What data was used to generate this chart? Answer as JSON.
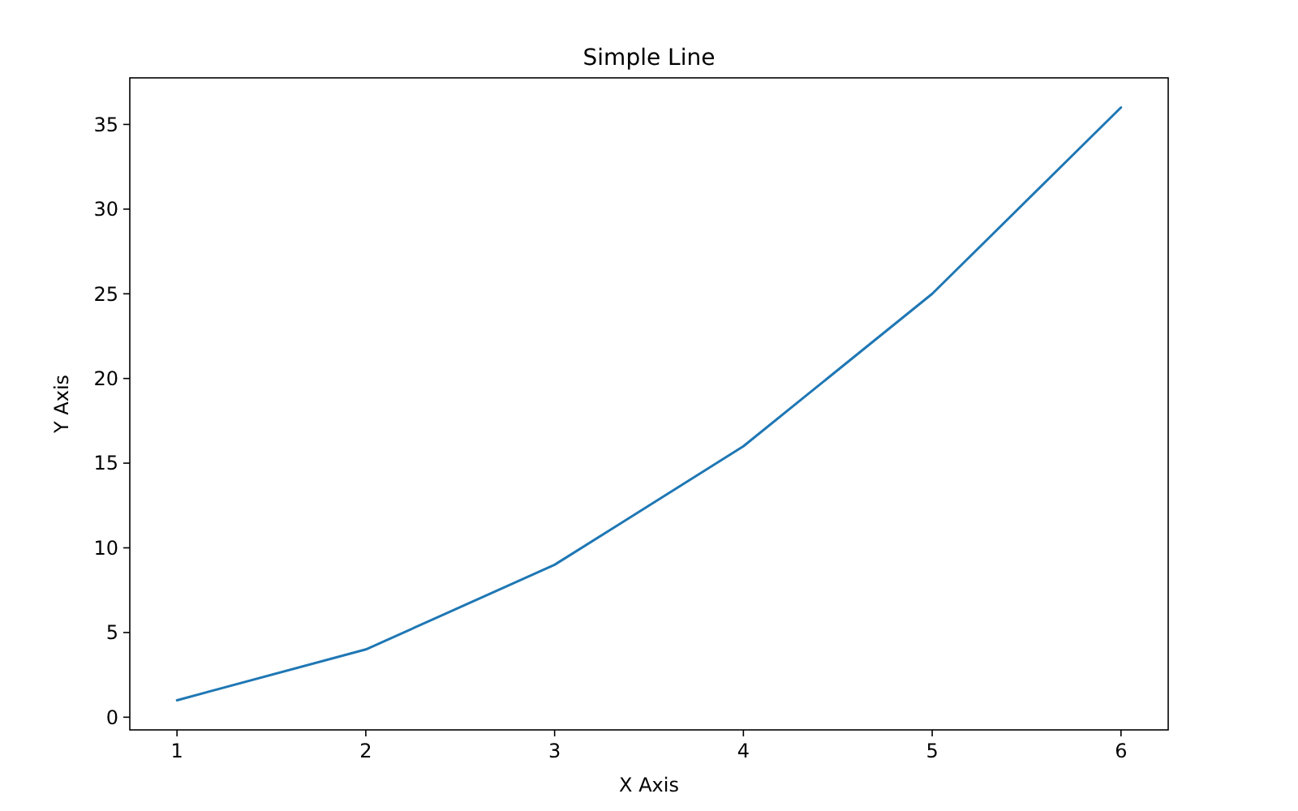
{
  "chart_data": {
    "type": "line",
    "title": "Simple Line",
    "xlabel": "X Axis",
    "ylabel": "Y Axis",
    "x": [
      1,
      2,
      3,
      4,
      5,
      6
    ],
    "series": [
      {
        "color": "#1f77b4",
        "values": [
          1,
          4,
          9,
          16,
          25,
          36
        ]
      }
    ],
    "xlim": [
      0.75,
      6.25
    ],
    "xticks": [
      1,
      2,
      3,
      4,
      5,
      6
    ],
    "ylim": [
      -0.75,
      37.75
    ],
    "yticks": [
      0,
      5,
      10,
      15,
      20,
      25,
      30,
      35
    ],
    "grid": false,
    "marker": "none",
    "line_style": "solid"
  }
}
